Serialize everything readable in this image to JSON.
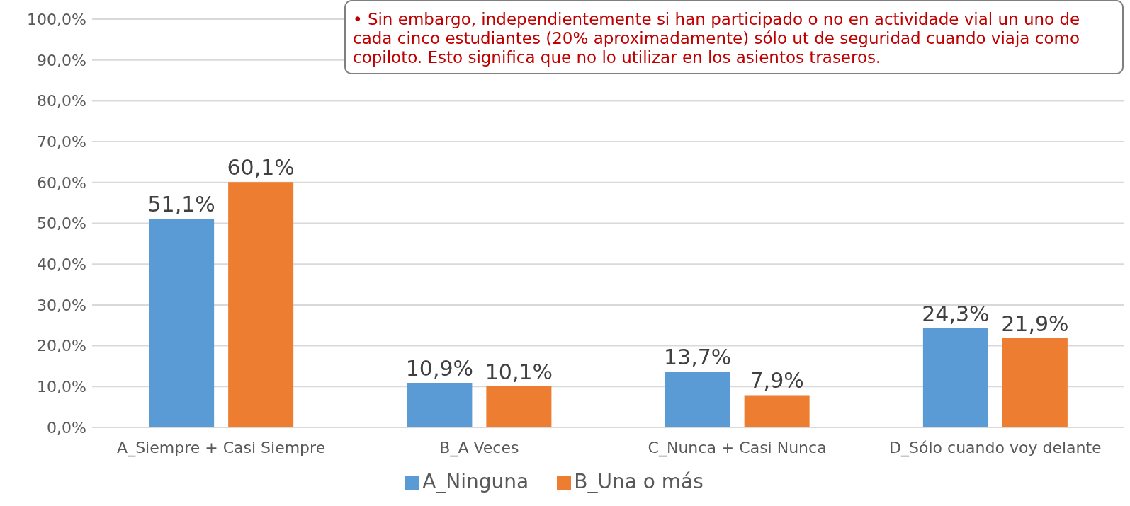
{
  "chart_data": {
    "type": "bar",
    "categories": [
      "A_Siempre + Casi Siempre",
      "B_A Veces",
      "C_Nunca + Casi Nunca",
      "D_Sólo cuando voy delante"
    ],
    "series": [
      {
        "name": "A_Ninguna",
        "color": "#5b9bd5",
        "values": [
          51.1,
          10.9,
          13.7,
          24.3
        ],
        "value_labels": [
          "51,1%",
          "10,9%",
          "13,7%",
          "24,3%"
        ]
      },
      {
        "name": "B_Una o más",
        "color": "#ed7d31",
        "values": [
          60.1,
          10.1,
          7.9,
          21.9
        ],
        "value_labels": [
          "60,1%",
          "10,1%",
          "7,9%",
          "21,9%"
        ]
      }
    ],
    "ylim": [
      0,
      100
    ],
    "yticks": [
      {
        "value": 0,
        "label": "0,0%"
      },
      {
        "value": 10,
        "label": "10,0%"
      },
      {
        "value": 20,
        "label": "20,0%"
      },
      {
        "value": 30,
        "label": "30,0%"
      },
      {
        "value": 40,
        "label": "40,0%"
      },
      {
        "value": 50,
        "label": "50,0%"
      },
      {
        "value": 60,
        "label": "60,0%"
      },
      {
        "value": 70,
        "label": "70,0%"
      },
      {
        "value": 80,
        "label": "80,0%"
      },
      {
        "value": 90,
        "label": "90,0%"
      },
      {
        "value": 100,
        "label": "100,0%"
      }
    ],
    "grid": "y",
    "legend": "bottom",
    "annotations": [
      "• Sin embargo, independientemente si han participado o no en actividade vial un uno de cada cinco estudiantes (20% aproximadamente) sólo ut de seguridad cuando viaja como copiloto. Esto significa que no lo utilizar en los asientos traseros."
    ]
  }
}
